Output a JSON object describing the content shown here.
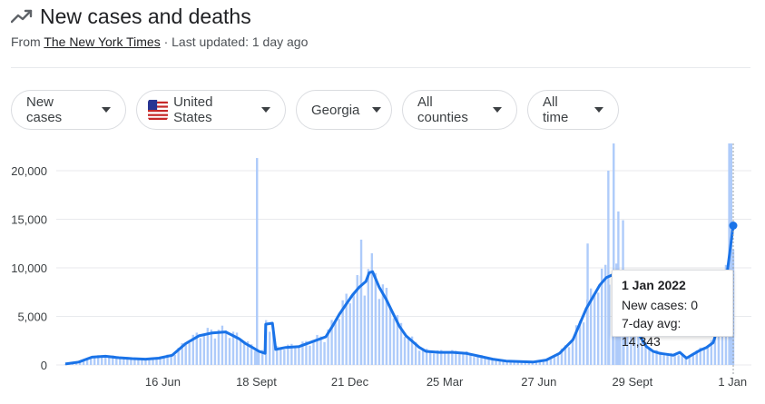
{
  "header": {
    "title": "New cases and deaths",
    "source_prefix": "From ",
    "source_name": "The New York Times",
    "source_suffix": " · Last updated: 1 day ago"
  },
  "filters": [
    {
      "label": "New cases"
    },
    {
      "label": "United States"
    },
    {
      "label": "Georgia"
    },
    {
      "label": "All counties"
    },
    {
      "label": "All time"
    }
  ],
  "colors": {
    "bar": "#aecbfa",
    "line": "#1a73e8",
    "grid": "#e8eaed",
    "text": "#3c4043"
  },
  "tooltip": {
    "date": "1 Jan 2022",
    "new_cases": "New cases: 0",
    "avg": "7-day avg: 14,343"
  },
  "chart_data": {
    "type": "bar",
    "ylim": [
      0,
      22800
    ],
    "y_ticks": [
      0,
      5000,
      10000,
      15000,
      20000
    ],
    "y_tick_labels": [
      "0",
      "5,000",
      "10,000",
      "15,000",
      "20,000"
    ],
    "x_tick_labels": [
      "16 Jun",
      "18 Sept",
      "21 Dec",
      "25 Mar",
      "27 Jun",
      "29 Sept",
      "1 Jan"
    ],
    "x_tick_frac": [
      0.146,
      0.286,
      0.426,
      0.568,
      0.709,
      0.849,
      0.999
    ],
    "series": [
      {
        "name": "7-day avg",
        "type": "line",
        "points": [
          [
            0.0,
            100
          ],
          [
            0.02,
            300
          ],
          [
            0.04,
            800
          ],
          [
            0.06,
            900
          ],
          [
            0.08,
            750
          ],
          [
            0.1,
            650
          ],
          [
            0.12,
            600
          ],
          [
            0.14,
            700
          ],
          [
            0.16,
            1000
          ],
          [
            0.18,
            2200
          ],
          [
            0.2,
            3000
          ],
          [
            0.22,
            3300
          ],
          [
            0.24,
            3400
          ],
          [
            0.26,
            2700
          ],
          [
            0.27,
            2200
          ],
          [
            0.28,
            1800
          ],
          [
            0.29,
            1400
          ],
          [
            0.299,
            1200
          ],
          [
            0.3,
            4200
          ],
          [
            0.31,
            4300
          ],
          [
            0.315,
            1600
          ],
          [
            0.33,
            1800
          ],
          [
            0.35,
            1900
          ],
          [
            0.37,
            2400
          ],
          [
            0.39,
            2900
          ],
          [
            0.4,
            4000
          ],
          [
            0.41,
            5200
          ],
          [
            0.42,
            6200
          ],
          [
            0.43,
            7200
          ],
          [
            0.44,
            8000
          ],
          [
            0.45,
            8600
          ],
          [
            0.455,
            9500
          ],
          [
            0.46,
            9600
          ],
          [
            0.47,
            8000
          ],
          [
            0.48,
            6800
          ],
          [
            0.49,
            5400
          ],
          [
            0.5,
            4000
          ],
          [
            0.51,
            3000
          ],
          [
            0.52,
            2400
          ],
          [
            0.53,
            1800
          ],
          [
            0.54,
            1400
          ],
          [
            0.56,
            1300
          ],
          [
            0.58,
            1300
          ],
          [
            0.6,
            1200
          ],
          [
            0.62,
            900
          ],
          [
            0.64,
            600
          ],
          [
            0.66,
            400
          ],
          [
            0.68,
            350
          ],
          [
            0.7,
            300
          ],
          [
            0.72,
            500
          ],
          [
            0.74,
            1200
          ],
          [
            0.76,
            2600
          ],
          [
            0.77,
            4200
          ],
          [
            0.78,
            5800
          ],
          [
            0.79,
            7000
          ],
          [
            0.8,
            8200
          ],
          [
            0.81,
            9000
          ],
          [
            0.82,
            9300
          ],
          [
            0.83,
            8200
          ],
          [
            0.84,
            6500
          ],
          [
            0.85,
            4700
          ],
          [
            0.86,
            3000
          ],
          [
            0.87,
            1900
          ],
          [
            0.88,
            1400
          ],
          [
            0.89,
            1200
          ],
          [
            0.9,
            1100
          ],
          [
            0.91,
            1000
          ],
          [
            0.92,
            1300
          ],
          [
            0.93,
            700
          ],
          [
            0.94,
            1100
          ],
          [
            0.95,
            1500
          ],
          [
            0.96,
            1800
          ],
          [
            0.97,
            2300
          ],
          [
            0.98,
            4500
          ],
          [
            0.99,
            9000
          ],
          [
            1.0,
            14343
          ]
        ]
      }
    ],
    "spikes": [
      [
        0.287,
        21300
      ],
      [
        0.443,
        12900
      ],
      [
        0.813,
        20000
      ],
      [
        0.821,
        22800
      ],
      [
        0.828,
        15800
      ],
      [
        0.835,
        14900
      ],
      [
        0.782,
        12500
      ],
      [
        0.994,
        22800
      ],
      [
        0.997,
        22800
      ]
    ]
  }
}
